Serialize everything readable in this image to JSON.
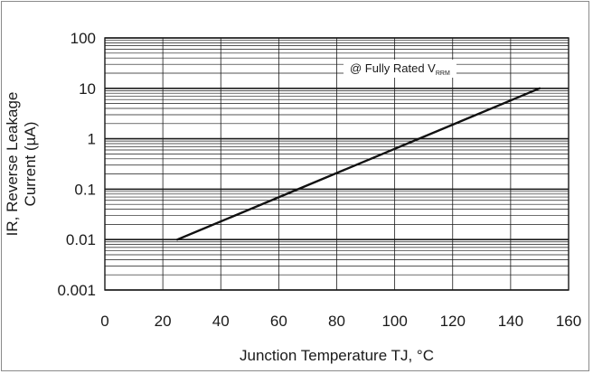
{
  "chart_data": {
    "type": "line",
    "xlabel": "Junction Temperature TJ, °C",
    "ylabel_line1": "IR, Reverse Leakage",
    "ylabel_line2": "Current (µA)",
    "xlim": [
      0,
      160
    ],
    "ylim": [
      0.001,
      100
    ],
    "yscale": "log",
    "grid": true,
    "x_ticks": [
      0,
      20,
      40,
      60,
      80,
      100,
      120,
      140,
      160
    ],
    "x_tick_labels": [
      "0",
      "20",
      "40",
      "60",
      "80",
      "100",
      "120",
      "140",
      "160"
    ],
    "y_ticks": [
      0.001,
      0.01,
      0.1,
      1,
      10,
      100
    ],
    "y_tick_labels": [
      "0.001",
      "0.01",
      "0.1",
      "1",
      "10",
      "100"
    ],
    "annotation": {
      "text": "@ Fully Rated V",
      "subscript": "RRM"
    },
    "series": [
      {
        "x": [
          25,
          150
        ],
        "y": [
          0.01,
          10
        ]
      }
    ],
    "colors": {
      "line": "#111111",
      "grid": "#1a1a1a",
      "frame": "#8a8a8a"
    }
  }
}
